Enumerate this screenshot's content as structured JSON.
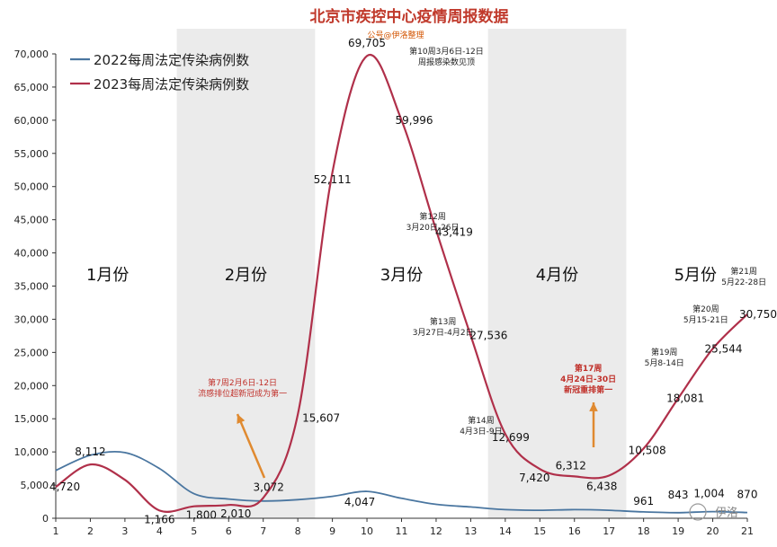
{
  "chart_data": {
    "type": "line",
    "title": "北京市疾控中心疫情周报数据",
    "subtitle": "公号@伊洛整理",
    "x": [
      1,
      2,
      3,
      4,
      5,
      6,
      7,
      8,
      9,
      10,
      11,
      12,
      13,
      14,
      15,
      16,
      17,
      18,
      19,
      20,
      21
    ],
    "x_ticks": [
      "1",
      "2",
      "3",
      "4",
      "5",
      "6",
      "7",
      "8",
      "9",
      "10",
      "11",
      "12",
      "13",
      "14",
      "15",
      "16",
      "17",
      "18",
      "19",
      "20",
      "21"
    ],
    "y_ticks": [
      "0",
      "5,000",
      "10,000",
      "15,000",
      "20,000",
      "25,000",
      "30,000",
      "35,000",
      "40,000",
      "45,000",
      "50,000",
      "55,000",
      "60,000",
      "65,000",
      "70,000"
    ],
    "ylim": [
      0,
      70000
    ],
    "xlim": [
      1,
      21
    ],
    "grid": false,
    "legend_position": "top-left",
    "colors": {
      "2022": "#4a76a0",
      "2023": "#b0304a",
      "band": "#ebebeb",
      "arrow": "#e08a30",
      "note_red": "#c0302a"
    },
    "series": [
      {
        "name": "2022每周法定传染病例数",
        "color": "#4a76a0",
        "values": [
          7200,
          9500,
          9900,
          7500,
          3700,
          2900,
          2600,
          2800,
          3300,
          4047,
          3000,
          2100,
          1700,
          1300,
          1200,
          1300,
          1200,
          961,
          843,
          1004,
          870
        ]
      },
      {
        "name": "2023每周法定传染病例数",
        "color": "#b0304a",
        "values": [
          4720,
          8112,
          5800,
          1166,
          1800,
          2010,
          3072,
          15607,
          52111,
          69705,
          59996,
          43419,
          27536,
          12699,
          7420,
          6312,
          6438,
          10508,
          18081,
          25544,
          30750
        ]
      }
    ],
    "data_labels": [
      {
        "text": "4,720",
        "x": 1,
        "y": 4720
      },
      {
        "text": "8,112",
        "x": 2,
        "y": 8112
      },
      {
        "text": "1,166",
        "x": 4,
        "y": 1166
      },
      {
        "text": "1,800",
        "x": 5,
        "y": 1800
      },
      {
        "text": "2,010",
        "x": 6,
        "y": 2010
      },
      {
        "text": "3,072",
        "x": 7,
        "y": 3072
      },
      {
        "text": "15,607",
        "x": 8,
        "y": 15607
      },
      {
        "text": "52,111",
        "x": 9,
        "y": 52111
      },
      {
        "text": "69,705",
        "x": 10,
        "y": 69705
      },
      {
        "text": "59,996",
        "x": 11,
        "y": 59996
      },
      {
        "text": "43,419",
        "x": 12,
        "y": 43419
      },
      {
        "text": "27,536",
        "x": 13,
        "y": 27536
      },
      {
        "text": "12,699",
        "x": 14,
        "y": 12699
      },
      {
        "text": "7,420",
        "x": 15,
        "y": 7420
      },
      {
        "text": "6,312",
        "x": 16,
        "y": 6312
      },
      {
        "text": "6,438",
        "x": 17,
        "y": 6438
      },
      {
        "text": "10,508",
        "x": 18,
        "y": 10508
      },
      {
        "text": "18,081",
        "x": 19,
        "y": 18081
      },
      {
        "text": "25,544",
        "x": 20,
        "y": 25544
      },
      {
        "text": "30,750",
        "x": 21,
        "y": 30750
      },
      {
        "text": "4,047",
        "x": 10,
        "y": 4047
      },
      {
        "text": "961",
        "x": 18,
        "y": 961
      },
      {
        "text": "843",
        "x": 19,
        "y": 843
      },
      {
        "text": "1,004",
        "x": 20,
        "y": 1004
      },
      {
        "text": "870",
        "x": 21,
        "y": 870
      }
    ],
    "month_labels": [
      "1月份",
      "2月份",
      "3月份",
      "4月份",
      "5月份"
    ],
    "annotations": {
      "week10": [
        "第10周3月6日-12日",
        "周报感染数见顶"
      ],
      "week12": [
        "第12周",
        "3月20日-26日"
      ],
      "week13": [
        "第13周",
        "3月27日-4月2日"
      ],
      "week14": [
        "第14周",
        "4月3日-9日"
      ],
      "week7": [
        "第7周2月6日-12日",
        "流感排位超新冠成为第一"
      ],
      "week17": [
        "第17周",
        "4月24日-30日",
        "新冠重排第一"
      ],
      "week19": [
        "第19周",
        "5月8-14日"
      ],
      "week20": [
        "第20周",
        "5月15-21日"
      ],
      "week21": [
        "第21周",
        "5月22-28日"
      ]
    },
    "watermark": "伊洛"
  }
}
